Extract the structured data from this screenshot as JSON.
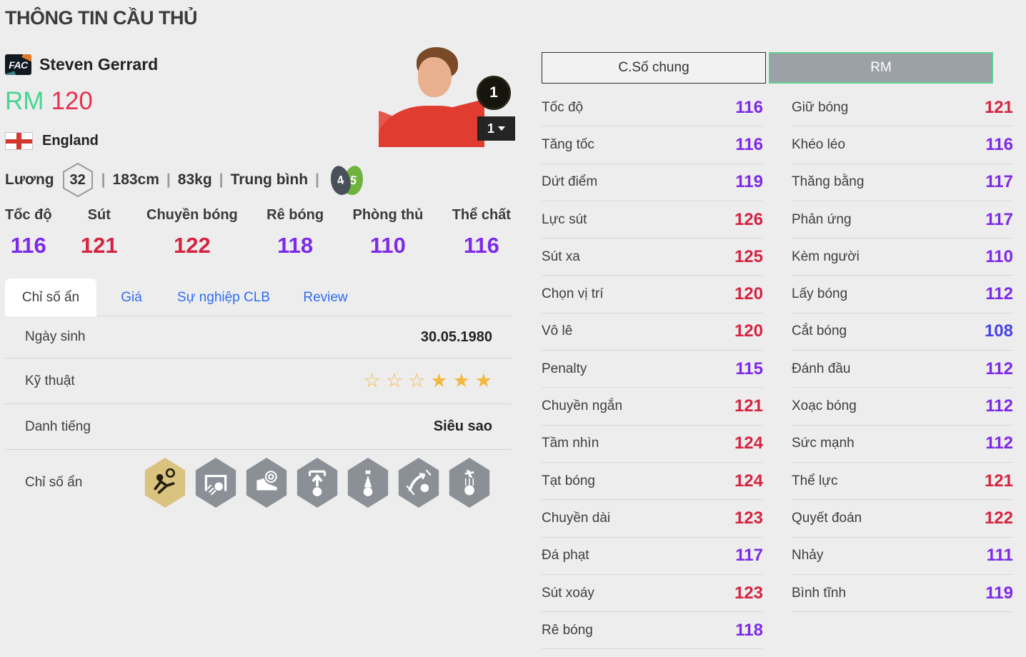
{
  "page": {
    "title": "THÔNG TIN CẦU THỦ"
  },
  "player": {
    "badge": "FAC",
    "name": "Steven Gerrard",
    "position": "RM",
    "ovr": "120",
    "nation": "England",
    "salary_label": "Lương",
    "salary": "32",
    "height": "183cm",
    "weight": "83kg",
    "body_type": "Trung bình",
    "separator": "|",
    "weak_foot": "4",
    "skill_foot": "5",
    "owned_count": "1",
    "owned_dropdown_value": "1"
  },
  "main_stats": [
    {
      "label": "Tốc độ",
      "value": 116
    },
    {
      "label": "Sút",
      "value": 121
    },
    {
      "label": "Chuyền bóng",
      "value": 122
    },
    {
      "label": "Rê bóng",
      "value": 118
    },
    {
      "label": "Phòng thủ",
      "value": 110
    },
    {
      "label": "Thể chất",
      "value": 116
    }
  ],
  "tabs": [
    {
      "name": "hidden-stats",
      "label": "Chỉ số ẩn",
      "active": true
    },
    {
      "name": "price",
      "label": "Giá",
      "active": false
    },
    {
      "name": "club-career",
      "label": "Sự nghiệp CLB",
      "active": false
    },
    {
      "name": "review",
      "label": "Review",
      "active": false
    }
  ],
  "info_table": {
    "birth": {
      "label": "Ngày sinh",
      "value": "30.05.1980"
    },
    "technique": {
      "label": "Kỹ thuật",
      "stars_outline": 3,
      "stars_filled": 3
    },
    "fame": {
      "label": "Danh tiếng",
      "value": "Siêu sao"
    },
    "hidden": {
      "label": "Chỉ số ẩn",
      "icons": [
        {
          "name": "bicycle-kick",
          "gold": true
        },
        {
          "name": "power-shot",
          "gold": false
        },
        {
          "name": "accurate-shot",
          "gold": false
        },
        {
          "name": "ball-lift",
          "gold": false
        },
        {
          "name": "long-throw",
          "gold": false
        },
        {
          "name": "curve-pass",
          "gold": false
        },
        {
          "name": "aerial-control",
          "gold": false
        }
      ]
    }
  },
  "right_panel": {
    "tabs": [
      {
        "name": "general-stats",
        "label": "C.Số chung",
        "active": false
      },
      {
        "name": "rm-stats",
        "label": "RM",
        "active": true
      }
    ],
    "columns": [
      [
        {
          "label": "Tốc độ",
          "value": 116
        },
        {
          "label": "Tăng tốc",
          "value": 116
        },
        {
          "label": "Dứt điểm",
          "value": 119
        },
        {
          "label": "Lực sút",
          "value": 126
        },
        {
          "label": "Sút xa",
          "value": 125
        },
        {
          "label": "Chọn vị trí",
          "value": 120
        },
        {
          "label": "Vô lê",
          "value": 120
        },
        {
          "label": "Penalty",
          "value": 115
        },
        {
          "label": "Chuyền ngắn",
          "value": 121
        },
        {
          "label": "Tầm nhìn",
          "value": 124
        },
        {
          "label": "Tạt bóng",
          "value": 124
        },
        {
          "label": "Chuyền dài",
          "value": 123
        },
        {
          "label": "Đá phạt",
          "value": 117
        },
        {
          "label": "Sút xoáy",
          "value": 123
        },
        {
          "label": "Rê bóng",
          "value": 118
        }
      ],
      [
        {
          "label": "Giữ bóng",
          "value": 121
        },
        {
          "label": "Khéo léo",
          "value": 116
        },
        {
          "label": "Thăng bằng",
          "value": 117
        },
        {
          "label": "Phản ứng",
          "value": 117
        },
        {
          "label": "Kèm người",
          "value": 110
        },
        {
          "label": "Lấy bóng",
          "value": 112
        },
        {
          "label": "Cắt bóng",
          "value": 108
        },
        {
          "label": "Đánh đầu",
          "value": 112
        },
        {
          "label": "Xoạc bóng",
          "value": 112
        },
        {
          "label": "Sức mạnh",
          "value": 112
        },
        {
          "label": "Thể lực",
          "value": 121
        },
        {
          "label": "Quyết đoán",
          "value": 122
        },
        {
          "label": "Nhảy",
          "value": 111
        },
        {
          "label": "Bình tĩnh",
          "value": 119
        }
      ]
    ]
  },
  "colors": {
    "accent_green": "#45d58f",
    "ovr_red": "#e73150",
    "stat_high": "#d42440",
    "stat_mid": "#7d2ae8",
    "stat_low": "#4643e6",
    "tab_blue": "#2e6cf0",
    "star_gold": "#f3b83f"
  }
}
